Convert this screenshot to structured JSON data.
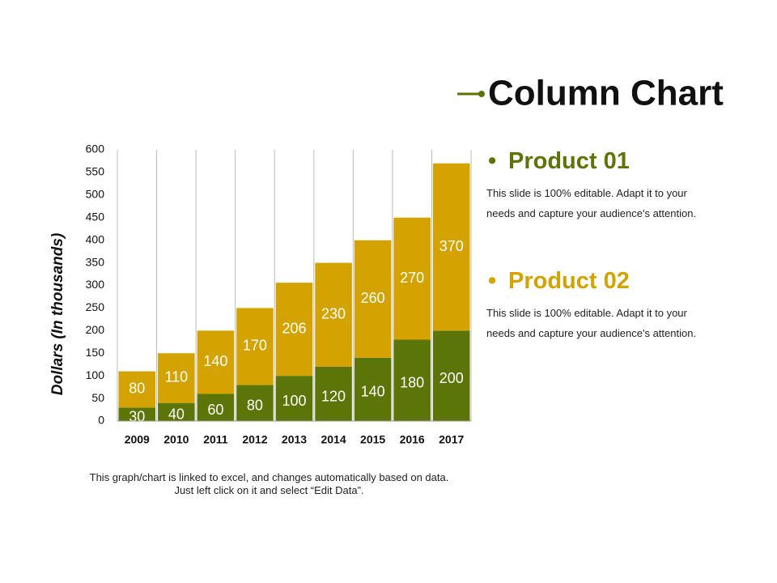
{
  "chart_data": {
    "type": "stacked-bar",
    "title": "Column Chart",
    "y_label": "Dollars (In thousands)",
    "categories": [
      "2009",
      "2010",
      "2011",
      "2012",
      "2013",
      "2014",
      "2015",
      "2016",
      "2017"
    ],
    "series": [
      {
        "name": "Product 01",
        "color": "#5b7508",
        "values": [
          30,
          40,
          60,
          80,
          100,
          120,
          140,
          180,
          200
        ]
      },
      {
        "name": "Product 02",
        "color": "#d4a302",
        "values": [
          80,
          110,
          140,
          170,
          206,
          230,
          260,
          270,
          370
        ]
      }
    ],
    "ylim": [
      0,
      600
    ],
    "yticks": [
      0,
      50,
      100,
      150,
      200,
      250,
      300,
      350,
      400,
      450,
      500,
      550,
      600
    ],
    "grid": true
  },
  "panel": {
    "descriptions": [
      "This slide is 100% editable. Adapt it to your needs and capture your audience's attention.",
      "This slide is 100% editable. Adapt it to your needs and capture your audience's attention."
    ]
  },
  "footnote": "This graph/chart is linked to excel, and changes automatically based on data. Just left click on it and select “Edit Data”."
}
